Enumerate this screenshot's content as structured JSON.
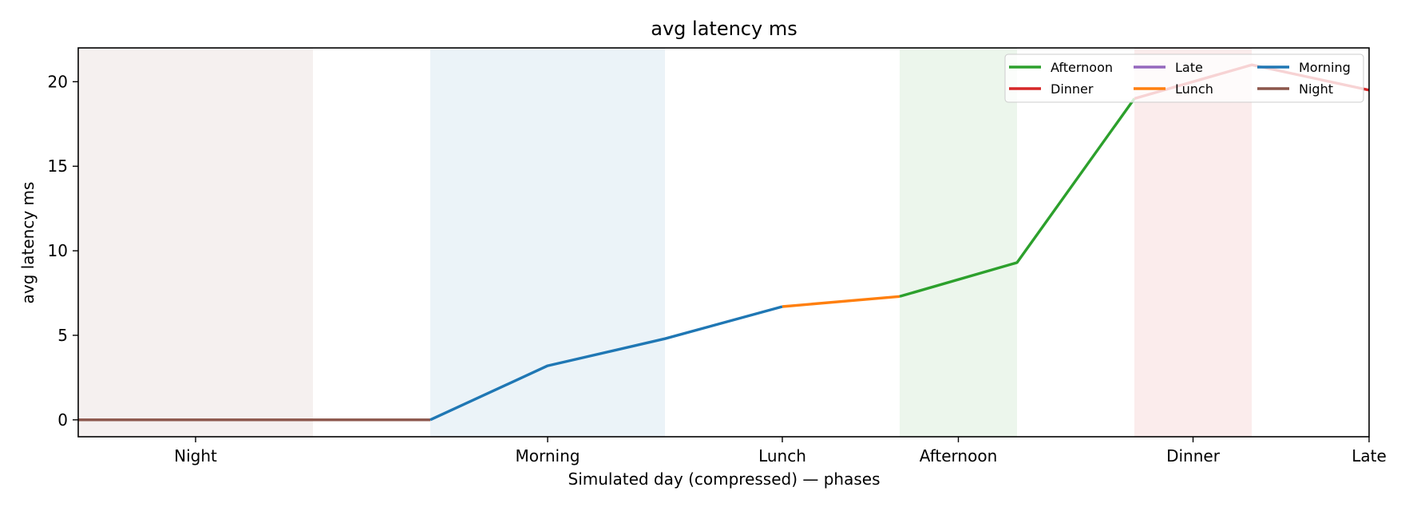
{
  "chart_data": {
    "type": "line",
    "title": "avg latency ms",
    "xlabel": "Simulated day (compressed) — phases",
    "ylabel": "avg latency ms",
    "xlim": [
      0,
      11
    ],
    "ylim": [
      -1,
      22
    ],
    "yticks": [
      0,
      5,
      10,
      15,
      20
    ],
    "xticks": [
      {
        "x": 1,
        "label": "Night"
      },
      {
        "x": 4,
        "label": "Morning"
      },
      {
        "x": 6,
        "label": "Lunch"
      },
      {
        "x": 7.5,
        "label": "Afternoon"
      },
      {
        "x": 9.5,
        "label": "Dinner"
      },
      {
        "x": 11,
        "label": "Late"
      }
    ],
    "grid": false,
    "legend_position": "top-right",
    "bands": [
      {
        "x0": 0,
        "x1": 2,
        "color": "#8c564b"
      },
      {
        "x0": 3,
        "x1": 5,
        "color": "#1f77b4"
      },
      {
        "x0": 7,
        "x1": 8,
        "color": "#2ca02c"
      },
      {
        "x0": 9,
        "x1": 10,
        "color": "#d62728"
      }
    ],
    "series": [
      {
        "name": "Night",
        "color": "#8c564b",
        "x": [
          0,
          1,
          2,
          3
        ],
        "y": [
          0,
          0,
          0,
          0
        ]
      },
      {
        "name": "Morning",
        "color": "#1f77b4",
        "x": [
          3,
          4,
          5,
          6
        ],
        "y": [
          0,
          3.2,
          4.8,
          6.7
        ]
      },
      {
        "name": "Lunch",
        "color": "#ff7f0e",
        "x": [
          6,
          7
        ],
        "y": [
          6.7,
          7.3
        ]
      },
      {
        "name": "Afternoon",
        "color": "#2ca02c",
        "x": [
          7,
          8,
          9
        ],
        "y": [
          7.3,
          9.3,
          19
        ]
      },
      {
        "name": "Dinner",
        "color": "#d62728",
        "x": [
          9,
          10,
          11
        ],
        "y": [
          19,
          21,
          19.5
        ]
      },
      {
        "name": "Late",
        "color": "#9467bd",
        "x": [],
        "y": []
      }
    ],
    "legend_order": [
      "Afternoon",
      "Late",
      "Morning",
      "Dinner",
      "Lunch",
      "Night"
    ]
  }
}
